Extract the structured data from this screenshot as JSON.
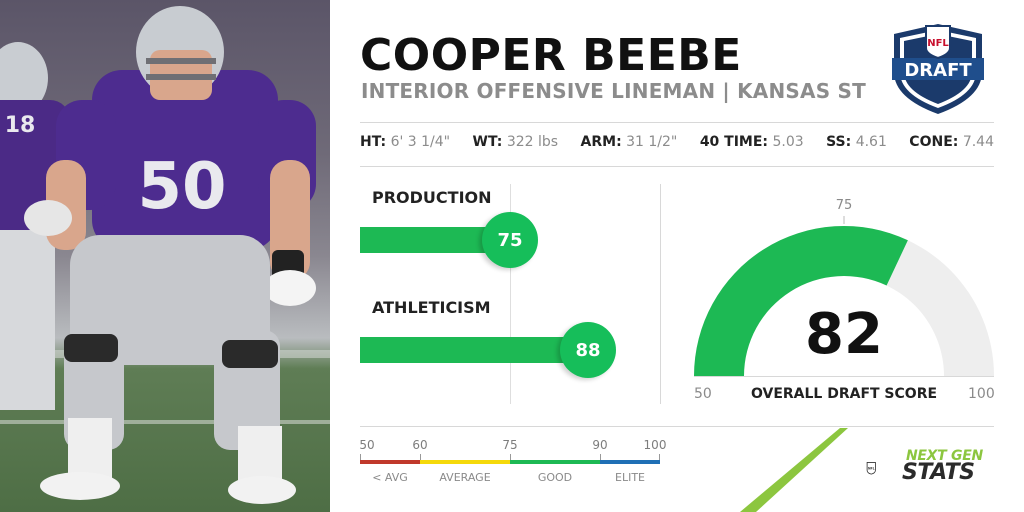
{
  "player": {
    "name": "COOPER BEEBE",
    "position_school": "INTERIOR OFFENSIVE LINEMAN | KANSAS ST",
    "jersey_number": "50",
    "teammate_jersey": "18"
  },
  "draft_logo": {
    "text": "DRAFT",
    "shield_text": "NFL"
  },
  "measurables": [
    {
      "label": "HT:",
      "value": "6' 3 1/4\""
    },
    {
      "label": "WT:",
      "value": "322 lbs"
    },
    {
      "label": "ARM:",
      "value": "31 1/2\""
    },
    {
      "label": "40 TIME:",
      "value": "5.03"
    },
    {
      "label": "SS:",
      "value": "4.61"
    },
    {
      "label": "CONE:",
      "value": "7.44"
    }
  ],
  "scores": {
    "production": {
      "label": "PRODUCTION",
      "value": 75,
      "display": "75"
    },
    "athleticism": {
      "label": "ATHLETICISM",
      "value": 88,
      "display": "88"
    }
  },
  "scale": {
    "ticks": [
      "50",
      "60",
      "75",
      "90",
      "100"
    ],
    "tiers": [
      {
        "label": "< AVG",
        "color": "#c0392b"
      },
      {
        "label": "AVERAGE",
        "color": "#f5d90a"
      },
      {
        "label": "GOOD",
        "color": "#1db954"
      },
      {
        "label": "ELITE",
        "color": "#1f6fb5"
      }
    ]
  },
  "gauge": {
    "value": 82,
    "display": "82",
    "min": "50",
    "max": "100",
    "mid_tick": "75",
    "caption": "OVERALL DRAFT SCORE",
    "fill_color": "#1db954",
    "track_color": "#eeeeee"
  },
  "branding": {
    "ngs_top": "NEXT GEN",
    "ngs_bottom": "STATS",
    "shield_text": "NFL",
    "accent_color": "#8cc63f"
  }
}
